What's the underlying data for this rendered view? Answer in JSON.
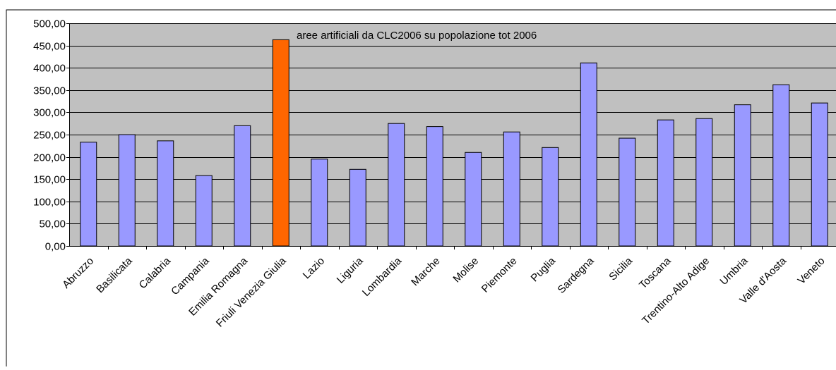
{
  "chart_data": {
    "type": "bar",
    "title": "aree artificiali da CLC2006 su popolazione tot 2006",
    "xlabel": "",
    "ylabel": "",
    "ylim": [
      0,
      500
    ],
    "ytick_step": 50,
    "ytick_labels": [
      "0,00",
      "50,00",
      "100,00",
      "150,00",
      "200,00",
      "250,00",
      "300,00",
      "350,00",
      "400,00",
      "450,00",
      "500,00"
    ],
    "grid": true,
    "legend": "none",
    "categories": [
      "Abruzzo",
      "Basilicata",
      "Calabria",
      "Campania",
      "Emilia Romagna",
      "Friuli Venezia Giulia",
      "Lazio",
      "Liguria",
      "Lombardia",
      "Marche",
      "Molise",
      "Piemonte",
      "Puglia",
      "Sardegna",
      "Sicilia",
      "Toscana",
      "Trentino-Alto Adige",
      "Umbria",
      "Valle d'Aosta",
      "Veneto"
    ],
    "values": [
      233,
      250,
      236,
      158,
      270,
      463,
      195,
      172,
      275,
      268,
      210,
      256,
      221,
      411,
      242,
      283,
      286,
      317,
      362,
      321
    ],
    "colors": {
      "bar": "#9999ff",
      "highlight": "#ff6600",
      "plot_background": "#c0c0c0",
      "gridline": "#000000"
    },
    "highlight_category": "Friuli Venezia Giulia"
  }
}
